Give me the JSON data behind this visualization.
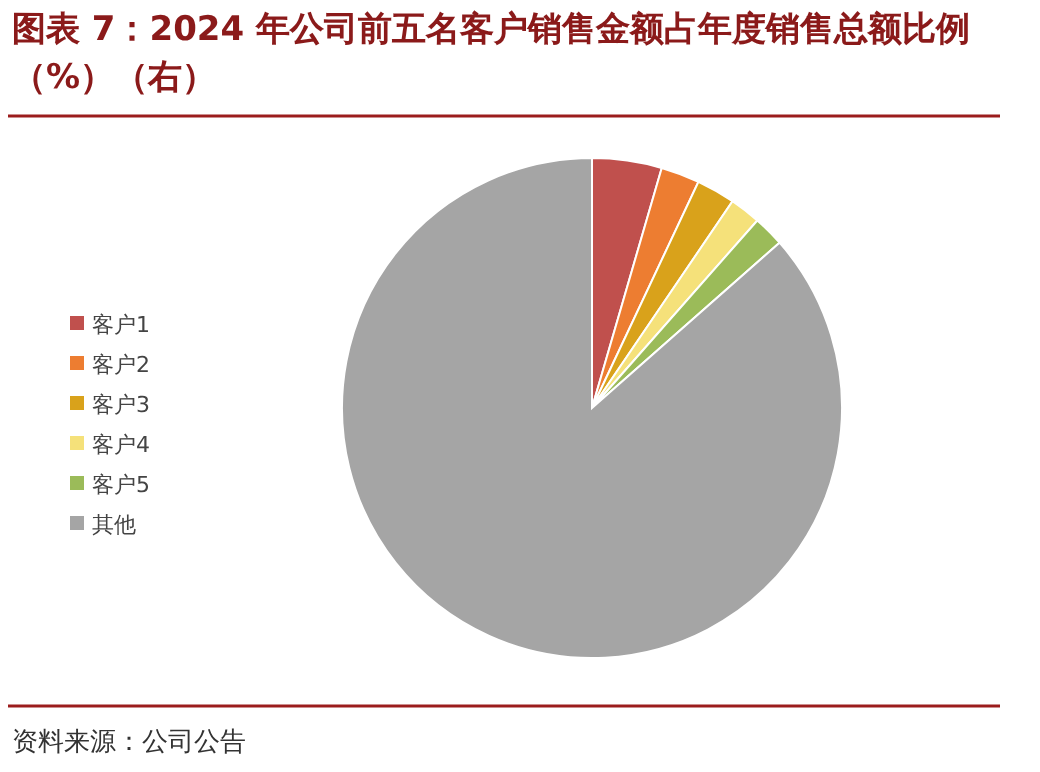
{
  "chart_data": {
    "type": "pie",
    "title": "图表 7：2024 年公司前五名客户销售金额占年度销售总额比例（%）（右）",
    "categories": [
      "客户1",
      "客户2",
      "客户3",
      "客户4",
      "客户5",
      "其他"
    ],
    "values": [
      4.5,
      2.5,
      2.5,
      2.0,
      2.0,
      86.5
    ],
    "colors": [
      "#c0504d",
      "#ed7d31",
      "#d9a21b",
      "#f5e17a",
      "#9bbb59",
      "#a5a5a5"
    ],
    "legend": "left",
    "annotations": [
      "资料来源：公司公告"
    ]
  }
}
